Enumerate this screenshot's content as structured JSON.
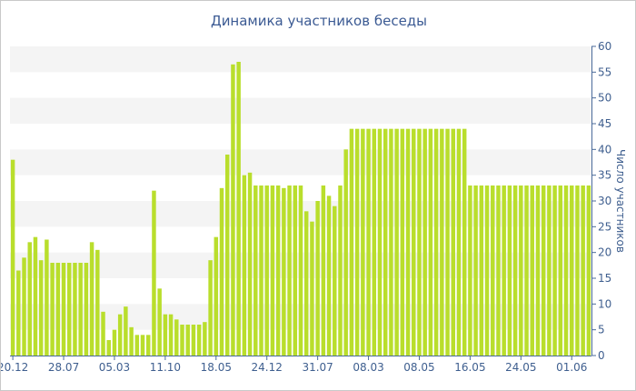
{
  "chart_data": {
    "type": "bar",
    "title": "Динамика участников беседы",
    "xlabel": "",
    "ylabel": "Число участников",
    "ylim": [
      0,
      60
    ],
    "y_ticks": [
      0,
      5,
      10,
      15,
      20,
      25,
      30,
      35,
      40,
      45,
      50,
      55,
      60
    ],
    "y_axis_side": "right",
    "grid": true,
    "x_tick_labels": [
      "20.12",
      "28.07",
      "05.03",
      "11.10",
      "18.05",
      "24.12",
      "31.07",
      "08.03",
      "08.05",
      "16.05",
      "24.05",
      "01.06"
    ],
    "x_tick_indices": [
      0,
      9,
      18,
      27,
      36,
      45,
      54,
      63,
      72,
      81,
      90,
      99
    ],
    "bar_color": "#b9de2c",
    "series": [
      {
        "values": [
          38,
          16.5,
          19,
          22,
          23,
          18.5,
          22.5,
          18,
          18,
          18,
          18,
          18,
          18,
          18,
          22,
          20.5,
          8.5,
          3,
          5,
          8,
          9.5,
          5.5,
          4,
          4,
          4,
          32,
          13,
          8,
          8,
          7,
          6,
          6,
          6,
          6,
          6.5,
          18.5,
          23,
          32.5,
          39,
          56.5,
          57,
          35,
          35.5,
          33,
          33,
          33,
          33,
          33,
          32.5,
          33,
          33,
          33,
          28,
          26,
          30,
          33,
          31,
          29,
          33,
          40,
          44,
          44,
          44,
          44,
          44,
          44,
          44,
          44,
          44,
          44,
          44,
          44,
          44,
          44,
          44,
          44,
          44,
          44,
          44,
          44,
          44,
          33,
          33,
          33,
          33,
          33,
          33,
          33,
          33,
          33,
          33,
          33,
          33,
          33,
          33,
          33,
          33,
          33,
          33,
          33,
          33,
          33,
          33
        ]
      }
    ]
  }
}
